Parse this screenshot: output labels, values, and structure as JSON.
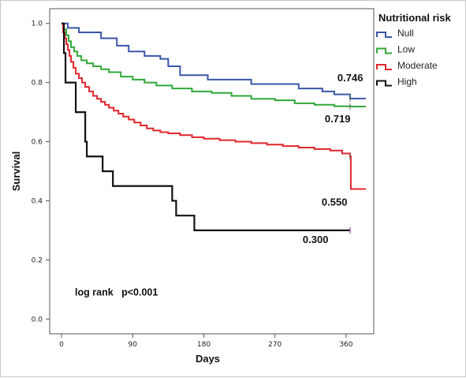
{
  "chart_data": {
    "type": "line",
    "title": "",
    "xlabel": "Days",
    "ylabel": "Survival",
    "xlim": [
      -15,
      395
    ],
    "ylim": [
      -0.05,
      1.05
    ],
    "x_ticks": [
      0,
      90,
      180,
      270,
      360
    ],
    "x_tick_labels": [
      "0",
      "90",
      "180",
      "270",
      "360"
    ],
    "y_ticks": [
      0.0,
      0.2,
      0.4,
      0.6,
      0.8,
      1.0
    ],
    "y_tick_labels": [
      "0.0",
      "0.2",
      "0.4",
      "0.6",
      "0.8",
      "1.0"
    ],
    "grid": false,
    "legend": {
      "title": "Nutritional risk",
      "position": "top-right outside"
    },
    "annotation": "log rank   p<0.001",
    "series": [
      {
        "name": "Null",
        "color": "#3a56a8",
        "x": [
          0,
          8,
          22,
          50,
          70,
          85,
          105,
          125,
          135,
          150,
          185,
          240,
          300,
          330,
          345,
          365,
          385
        ],
        "y": [
          1.0,
          0.985,
          0.97,
          0.95,
          0.925,
          0.905,
          0.89,
          0.88,
          0.855,
          0.825,
          0.81,
          0.795,
          0.78,
          0.77,
          0.76,
          0.746,
          0.746
        ],
        "end_label": "0.746"
      },
      {
        "name": "Low",
        "color": "#2fa83a",
        "x": [
          0,
          3,
          6,
          9,
          12,
          16,
          20,
          25,
          32,
          40,
          50,
          60,
          75,
          90,
          105,
          120,
          140,
          165,
          190,
          215,
          240,
          270,
          295,
          320,
          345,
          365,
          385
        ],
        "y": [
          1.0,
          0.98,
          0.96,
          0.94,
          0.92,
          0.905,
          0.89,
          0.875,
          0.865,
          0.855,
          0.845,
          0.835,
          0.82,
          0.81,
          0.8,
          0.79,
          0.78,
          0.77,
          0.765,
          0.755,
          0.745,
          0.74,
          0.73,
          0.725,
          0.72,
          0.719,
          0.719
        ],
        "end_label": "0.719"
      },
      {
        "name": "Moderate",
        "color": "#e0262b",
        "x": [
          0,
          2,
          4,
          6,
          8,
          10,
          12,
          15,
          18,
          22,
          26,
          30,
          35,
          40,
          45,
          50,
          55,
          60,
          66,
          72,
          78,
          85,
          92,
          100,
          108,
          116,
          125,
          135,
          150,
          165,
          180,
          200,
          220,
          240,
          260,
          280,
          300,
          320,
          340,
          355,
          365,
          366,
          385
        ],
        "y": [
          1.0,
          0.97,
          0.95,
          0.93,
          0.91,
          0.89,
          0.87,
          0.85,
          0.83,
          0.815,
          0.8,
          0.785,
          0.77,
          0.755,
          0.745,
          0.735,
          0.725,
          0.715,
          0.705,
          0.695,
          0.685,
          0.675,
          0.665,
          0.655,
          0.645,
          0.638,
          0.632,
          0.628,
          0.622,
          0.615,
          0.61,
          0.605,
          0.6,
          0.595,
          0.59,
          0.585,
          0.58,
          0.575,
          0.57,
          0.56,
          0.55,
          0.44,
          0.44
        ],
        "end_label": "0.550"
      },
      {
        "name": "High",
        "color": "#111111",
        "x": [
          0,
          3,
          5,
          18,
          22,
          30,
          32,
          52,
          65,
          140,
          145,
          155,
          168,
          365
        ],
        "y": [
          1.0,
          0.9,
          0.8,
          0.7,
          0.7,
          0.6,
          0.55,
          0.5,
          0.45,
          0.4,
          0.35,
          0.35,
          0.3,
          0.3
        ],
        "end_label": "0.300"
      }
    ]
  }
}
